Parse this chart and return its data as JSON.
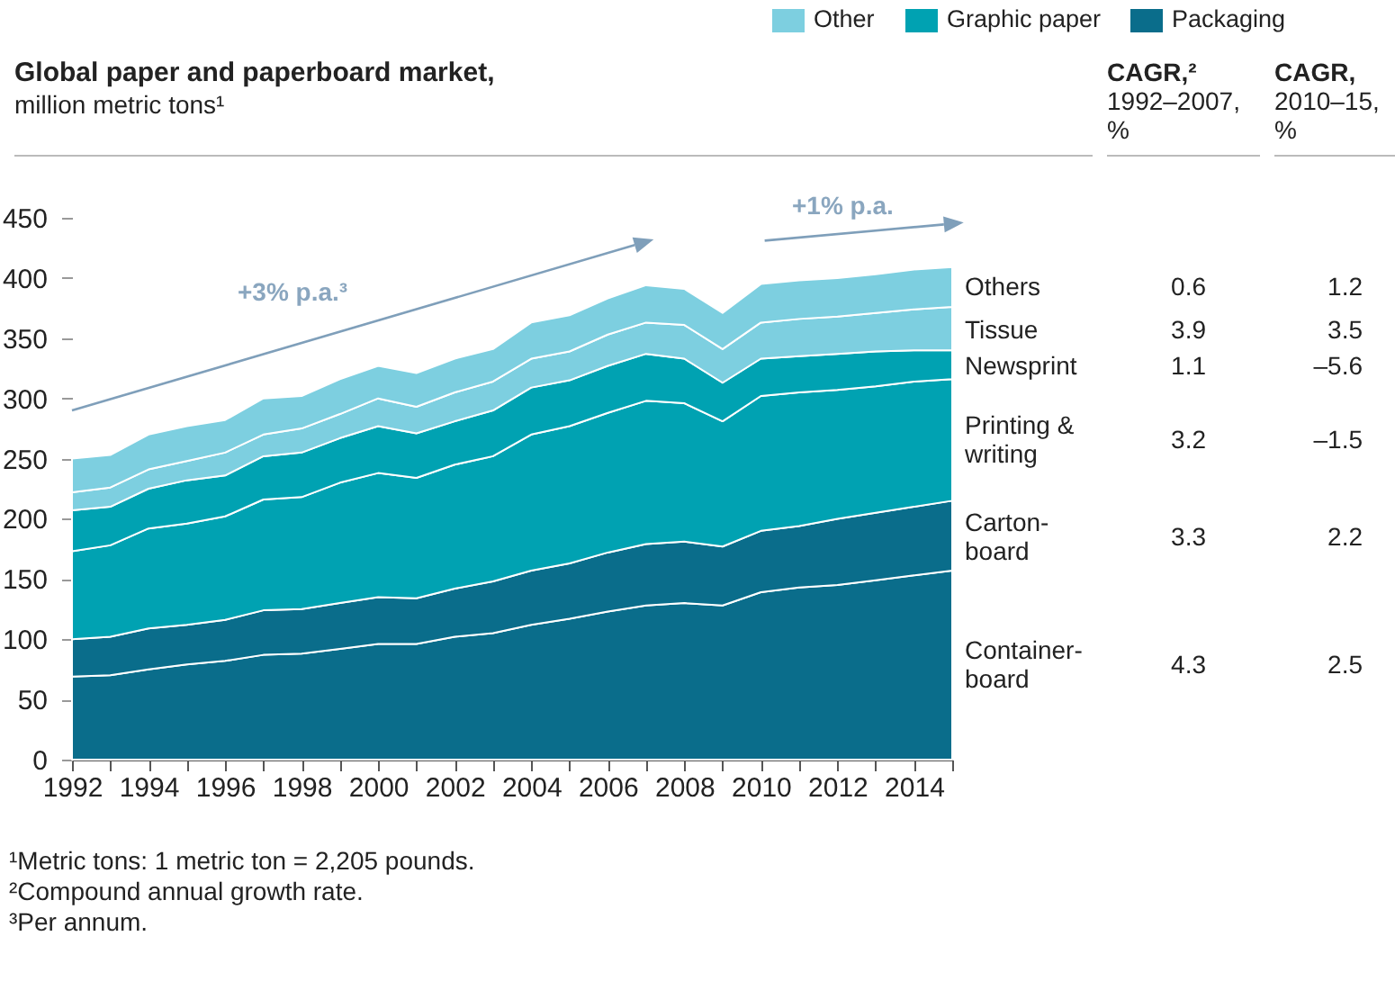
{
  "chart_data": {
    "type": "area",
    "stacked": true,
    "title": "Global paper and paperboard market,",
    "subtitle": "million metric tons¹",
    "x": [
      1992,
      1993,
      1994,
      1995,
      1996,
      1997,
      1998,
      1999,
      2000,
      2001,
      2002,
      2003,
      2004,
      2005,
      2006,
      2007,
      2008,
      2009,
      2010,
      2011,
      2012,
      2013,
      2014,
      2015
    ],
    "xlim": [
      1992,
      2015
    ],
    "xticks": [
      1992,
      {
        "value": 1993,
        "label": null
      },
      1994,
      {
        "value": 1995,
        "label": null
      },
      1996,
      {
        "value": 1997,
        "label": null
      },
      1998,
      {
        "value": 1999,
        "label": null
      },
      2000,
      {
        "value": 2001,
        "label": null
      },
      2002,
      {
        "value": 2003,
        "label": null
      },
      2004,
      {
        "value": 2005,
        "label": null
      },
      2006,
      {
        "value": 2007,
        "label": null
      },
      2008,
      {
        "value": 2009,
        "label": null
      },
      2010,
      {
        "value": 2011,
        "label": null
      },
      2012,
      {
        "value": 2013,
        "label": null
      },
      2014,
      {
        "value": 2015,
        "label": null
      }
    ],
    "ylim": [
      0,
      450
    ],
    "yticks": [
      0,
      50,
      100,
      150,
      200,
      250,
      300,
      350,
      400,
      450
    ],
    "grid": false,
    "marker": "none",
    "series": [
      {
        "name": "Container-board",
        "color": "#0a6d8b",
        "values": [
          69,
          70,
          75,
          79,
          82,
          87,
          88,
          92,
          96,
          96,
          102,
          105,
          112,
          117,
          123,
          128,
          130,
          128,
          139,
          143,
          145,
          149,
          153,
          157
        ]
      },
      {
        "name": "Carton-board",
        "color": "#0a6d8b",
        "values": [
          31,
          32,
          34,
          33,
          34,
          37,
          37,
          38,
          39,
          38,
          40,
          43,
          45,
          46,
          49,
          51,
          51,
          49,
          51,
          51,
          55,
          56,
          57,
          58
        ]
      },
      {
        "name": "Printing & writing",
        "color": "#00a2b2",
        "values": [
          73,
          76,
          83,
          84,
          86,
          92,
          93,
          100,
          103,
          100,
          103,
          104,
          113,
          114,
          116,
          119,
          115,
          104,
          112,
          111,
          107,
          105,
          104,
          101
        ]
      },
      {
        "name": "Newsprint",
        "color": "#00a2b2",
        "values": [
          34,
          32,
          33,
          36,
          34,
          36,
          37,
          37,
          39,
          37,
          36,
          38,
          39,
          38,
          39,
          39,
          37,
          32,
          31,
          30,
          30,
          29,
          26,
          24
        ]
      },
      {
        "name": "Tissue",
        "color": "#7dcfe0",
        "values": [
          15,
          16,
          16,
          16,
          19,
          18,
          20,
          20,
          23,
          22,
          24,
          24,
          24,
          24,
          26,
          26,
          28,
          28,
          30,
          31,
          31,
          32,
          34,
          36
        ]
      },
      {
        "name": "Others",
        "color": "#7dcfe0",
        "values": [
          28,
          27,
          29,
          29,
          27,
          30,
          27,
          29,
          27,
          28,
          28,
          27,
          30,
          30,
          30,
          31,
          30,
          30,
          32,
          32,
          32,
          32,
          33,
          33
        ]
      }
    ],
    "annotations": [
      "+3% p.a.³",
      "+1% p.a.",
      "Other",
      "Graphic paper",
      "Packaging",
      "CAGR,²\n1992–2007,\n%",
      "CAGR,\n2010–15,\n%",
      "4.3",
      "2.5",
      "3.3",
      "2.2",
      "3.2",
      "–1.5",
      "1.1",
      "–5.6",
      "3.9",
      "3.5",
      "0.6",
      "1.2",
      "¹Metric tons: 1 metric ton = 2,205 pounds.",
      "²Compound annual growth rate.",
      "³Per annum."
    ]
  }
}
